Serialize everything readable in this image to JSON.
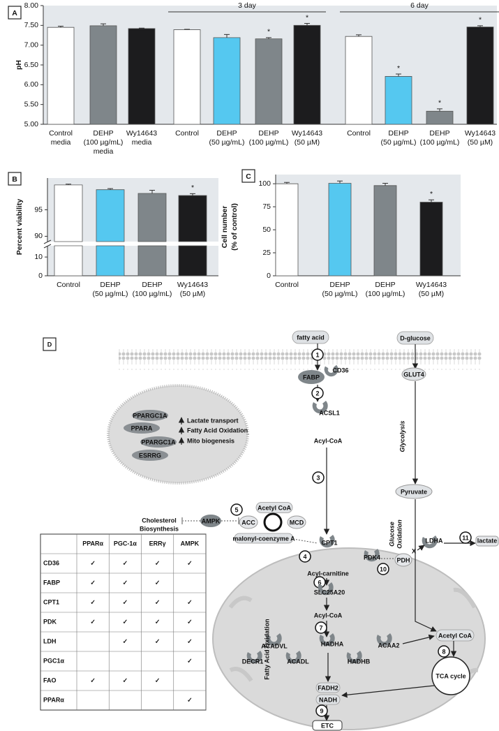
{
  "chart_data": [
    {
      "type": "bar",
      "panel": "A",
      "ylabel": "pH",
      "categories": [
        [
          "Control",
          "media"
        ],
        [
          "DEHP",
          "(100 µg/mL)",
          "media"
        ],
        [
          "Wy14643",
          "media"
        ],
        [
          "Control"
        ],
        [
          "DEHP",
          "(50 µg/mL)"
        ],
        [
          "DEHP",
          "(100 µg/mL)"
        ],
        [
          "Wy14643",
          "(50 µM)"
        ],
        [
          "Control"
        ],
        [
          "DEHP",
          "(50 µg/mL)"
        ],
        [
          "DEHP",
          "(100 µg/mL)"
        ],
        [
          "Wy14643",
          "(50 µM)"
        ]
      ],
      "group_labels": [
        "3 day",
        "6 day"
      ],
      "values": [
        7.45,
        7.49,
        7.42,
        7.39,
        7.19,
        7.16,
        7.5,
        7.22,
        6.21,
        5.33,
        7.46
      ],
      "errors": [
        0.03,
        0.05,
        0.01,
        0.01,
        0.08,
        0.03,
        0.05,
        0.04,
        0.06,
        0.06,
        0.03
      ],
      "significance": [
        null,
        null,
        null,
        null,
        null,
        "*",
        "*",
        null,
        "*",
        "*",
        "*"
      ],
      "colors": [
        "#ffffff",
        "#7f868a",
        "#1c1c1e",
        "#ffffff",
        "#55c8f0",
        "#7f868a",
        "#1c1c1e",
        "#ffffff",
        "#55c8f0",
        "#7f868a",
        "#1c1c1e"
      ],
      "ylim": [
        5,
        8
      ],
      "yticks": [
        {
          "value": 5,
          "label": "5.00"
        },
        {
          "value": 5.5,
          "label": "5.50"
        },
        {
          "value": 6,
          "label": "6.00"
        },
        {
          "value": 6.5,
          "label": "6.50"
        },
        {
          "value": 7,
          "label": "7.00"
        },
        {
          "value": 7.5,
          "label": "7.50"
        },
        {
          "value": 8,
          "label": "8.00"
        }
      ]
    },
    {
      "type": "bar",
      "panel": "B",
      "ylabel": "Percent viability",
      "categories": [
        [
          "Control"
        ],
        [
          "DEHP",
          "(50 µg/mL)"
        ],
        [
          "DEHP",
          "(100 µg/mL)"
        ],
        [
          "Wy14643",
          "(50 µM)"
        ]
      ],
      "values": [
        99.7,
        98.8,
        98.1,
        97.7
      ],
      "errors": [
        0.15,
        0.2,
        0.6,
        0.35
      ],
      "significance": [
        null,
        null,
        null,
        "*"
      ],
      "colors": [
        "#ffffff",
        "#55c8f0",
        "#7f868a",
        "#1c1c1e"
      ],
      "ylim": [
        0,
        101
      ],
      "axis_break": [
        16,
        89
      ],
      "yticks": [
        0,
        10,
        90,
        95
      ]
    },
    {
      "type": "bar",
      "panel": "C",
      "ylabel": [
        "Cell number",
        "(% of control)"
      ],
      "categories": [
        [
          "Control"
        ],
        [
          "DEHP",
          "(50 µg/mL)"
        ],
        [
          "DEHP",
          "(100 µg/mL)"
        ],
        [
          "Wy14643",
          "(50 µM)"
        ]
      ],
      "values": [
        100,
        100.5,
        98,
        80
      ],
      "errors": [
        1.5,
        2.5,
        2.5,
        2.5
      ],
      "significance": [
        null,
        null,
        null,
        "*"
      ],
      "colors": [
        "#ffffff",
        "#55c8f0",
        "#7f868a",
        "#1c1c1e"
      ],
      "ylim": [
        0,
        110
      ],
      "yticks": [
        0,
        25,
        50,
        75,
        100
      ]
    }
  ],
  "diagram": {
    "label": "D",
    "fatty_acid": "fatty acid",
    "d_glucose": "D-glucose",
    "fabp": "FABP",
    "cd36": "CD36",
    "glut4": "GLUT4",
    "acsl1": "ACSL1",
    "acyl_coa_1": "Acyl-CoA",
    "glycolysis": "Glycolysis",
    "pyruvate": "Pyruvate",
    "glucose_oxidation": [
      "Glucose",
      "Oxidation"
    ],
    "nucleus": {
      "factors": [
        "PPARGC1A",
        "PPARA",
        "PPARGC1A",
        "ESRRG"
      ],
      "processes": [
        "Lactate transport",
        "Fatty Acid Oxidation",
        "Mito biogenesis"
      ]
    },
    "acetyl_coa_1": "Acetyl CoA",
    "acc": "ACC",
    "mcd": "MCD",
    "malonyl": "malonyl-coenzyme A",
    "ampk": "AMPK",
    "cholesterol": [
      "Cholesterol",
      "Biosynthesis"
    ],
    "cpt1": "CPT1",
    "acyl_carnitine": "Acyl-carnitine",
    "slc25a20": "SLC25A20",
    "acyl_coa_2": "Acyl-CoA",
    "pdk4": "PDK4",
    "pdh": "PDH",
    "ldha": "LDHA",
    "lactate": "lactate",
    "block": "X",
    "acadvl": "ACADVL",
    "decr1": "DECR1",
    "acadl": "ACADL",
    "hadha": "HADHA",
    "hadhb": "HADHB",
    "acaa2": "ACAA2",
    "acetyl_coa_2": "Acetyl CoA",
    "tca": "TCA cycle",
    "fadh2": "FADH2",
    "nadh": "NADH",
    "etc": "ETC",
    "fao_label": "Fatty Acid Oxidation",
    "steps": [
      "1",
      "2",
      "3",
      "4",
      "5",
      "6",
      "7",
      "8",
      "9",
      "10",
      "11"
    ]
  },
  "table": {
    "columns": [
      "PPARα",
      "PGC-1α",
      "ERRγ",
      "AMPK"
    ],
    "rows": [
      {
        "label": "CD36",
        "cells": [
          "✓",
          "✓",
          "✓",
          "✓"
        ]
      },
      {
        "label": "FABP",
        "cells": [
          "✓",
          "✓",
          "✓",
          null
        ]
      },
      {
        "label": "CPT1",
        "cells": [
          "✓",
          "✓",
          "✓",
          "✓"
        ]
      },
      {
        "label": "PDK",
        "cells": [
          "✓",
          "✓",
          "✓",
          "✓"
        ]
      },
      {
        "label": "LDH",
        "cells": [
          null,
          "✓",
          "✓",
          "✓"
        ]
      },
      {
        "label": "PGC1α",
        "cells": [
          null,
          null,
          null,
          "✓"
        ]
      },
      {
        "label": "FAO",
        "cells": [
          "✓",
          "✓",
          "✓",
          null
        ]
      },
      {
        "label": "PPARα",
        "cells": [
          null,
          null,
          null,
          "✓"
        ]
      }
    ]
  }
}
